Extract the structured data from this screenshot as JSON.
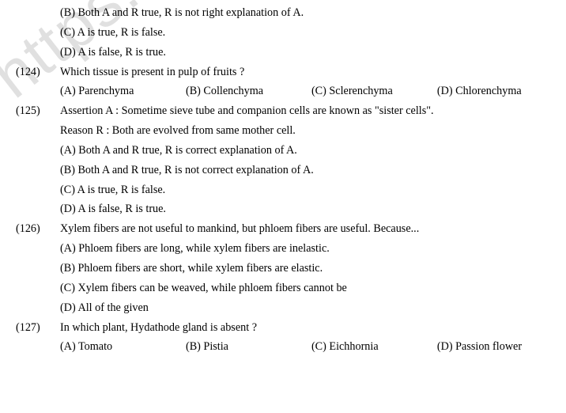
{
  "watermark": "https://www.st",
  "typography": {
    "font_family": "Times New Roman",
    "font_size_pt": 11,
    "line_height": 1.75,
    "text_color": "#000000",
    "background_color": "#ffffff",
    "watermark_color": "rgba(0,0,0,0.12)",
    "watermark_angle_deg": -38
  },
  "leading_options": {
    "B": "(B)  Both A and R true, R is not right explanation of A.",
    "C": "(C)  A is true, R is false.",
    "D": "(D)  A is false, R is true."
  },
  "q124": {
    "num": "(124)",
    "text": "Which tissue is present in pulp of fruits ?",
    "A": "(A) Parenchyma",
    "B": "(B) Collenchyma",
    "C": "(C) Sclerenchyma",
    "D": "(D) Chlorenchyma"
  },
  "q125": {
    "num": "(125)",
    "assertion": "Assertion A : Sometime sieve tube and companion cells are known as \"sister cells\".",
    "reason": "Reason R : Both are evolved from same mother cell.",
    "A": "(A)  Both A and R true, R is correct explanation of A.",
    "B": "(B)  Both A and R true, R is not correct explanation of A.",
    "C": "(C)  A is true, R is false.",
    "D": "(D)  A is false, R is true."
  },
  "q126": {
    "num": "(126)",
    "text": "Xylem fibers are not useful to mankind, but phloem fibers are useful. Because...",
    "A": "(A)  Phloem fibers are long, while xylem fibers are inelastic.",
    "B": "(B)  Phloem fibers are short, while xylem fibers are elastic.",
    "C": "(C)  Xylem fibers can be weaved, while phloem fibers cannot be",
    "D": "(D)  All of the given"
  },
  "q127": {
    "num": "(127)",
    "text": "In which plant, Hydathode gland is absent ?",
    "A": "(A) Tomato",
    "B": "(B) Pistia",
    "C": "(C) Eichhornia",
    "D": "(D) Passion flower"
  }
}
